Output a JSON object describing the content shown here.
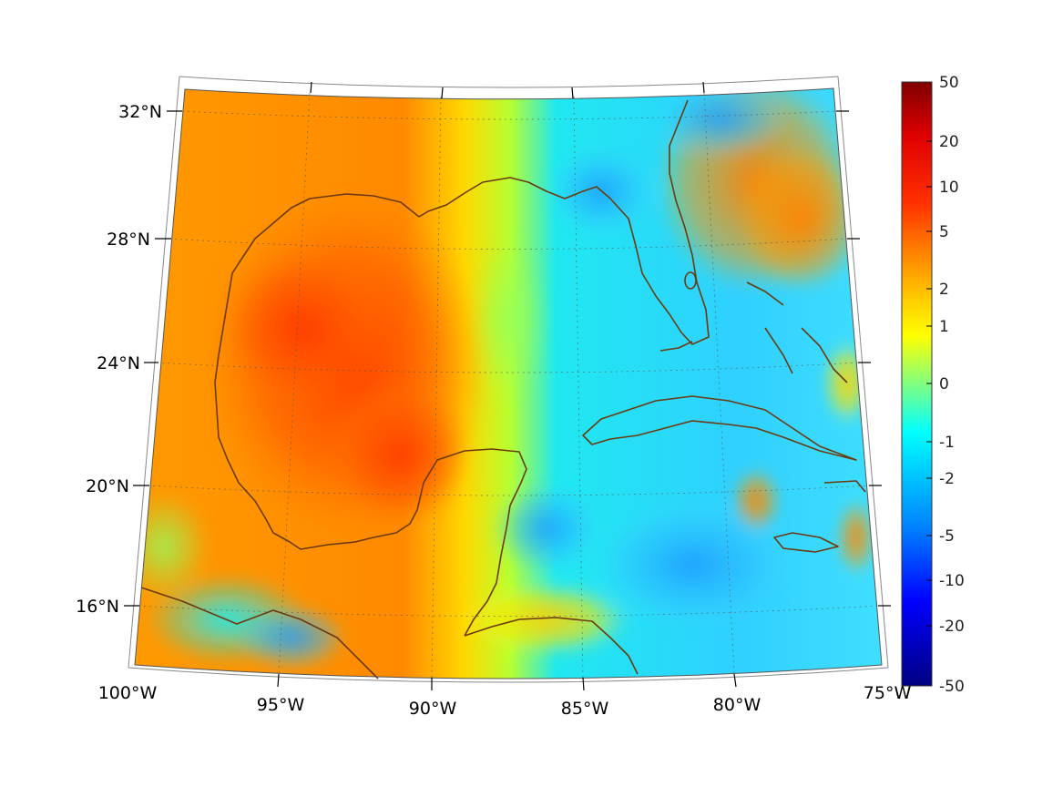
{
  "map": {
    "lat_labels": [
      "32°N",
      "28°N",
      "24°N",
      "20°N",
      "16°N"
    ],
    "lon_labels": [
      "100°W",
      "95°W",
      "90°W",
      "85°W",
      "80°W",
      "75°W"
    ],
    "coastline_color": "#6b3a10",
    "grid": true
  },
  "colorbar": {
    "colormap": "jet",
    "tick_labels": [
      "50",
      "20",
      "10",
      "5",
      "2",
      "1",
      "0",
      "-1",
      "-2",
      "-5",
      "-10",
      "-20",
      "-50"
    ],
    "colors": [
      "#800000",
      "#ff0000",
      "#ff8000",
      "#ffff00",
      "#00ffff",
      "#0080ff",
      "#0000ff",
      "#000080"
    ]
  }
}
